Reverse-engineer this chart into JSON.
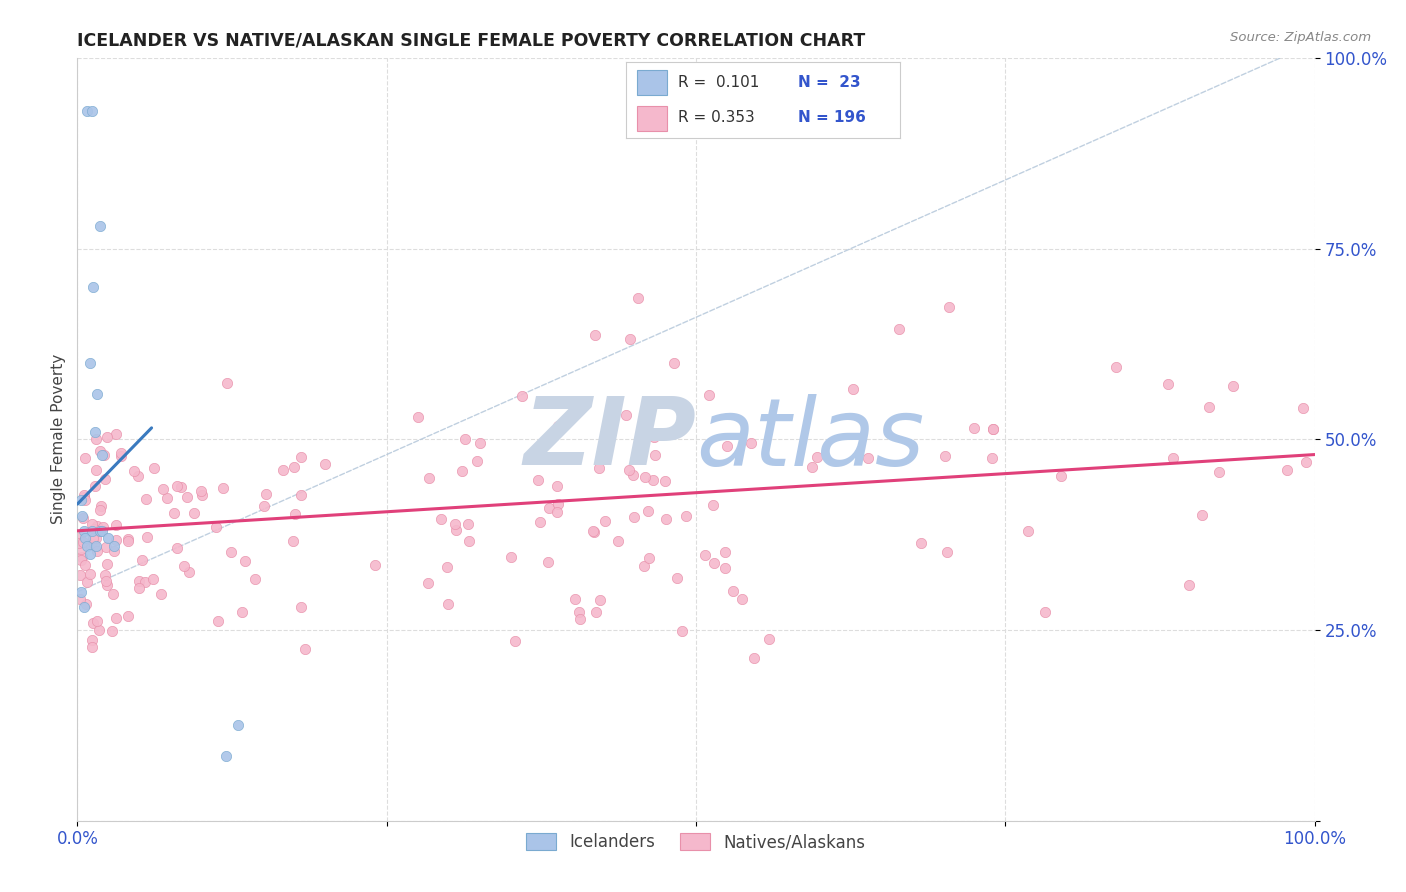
{
  "title": "ICELANDER VS NATIVE/ALASKAN SINGLE FEMALE POVERTY CORRELATION CHART",
  "source": "Source: ZipAtlas.com",
  "ylabel": "Single Female Poverty",
  "icelander_color": "#aac4e8",
  "icelander_edge_color": "#7aaad0",
  "native_color": "#f5b8cc",
  "native_edge_color": "#e890aa",
  "trendline_ice_color": "#3a7abf",
  "trendline_nat_color": "#e0407a",
  "dashed_line_color": "#b0c4d8",
  "watermark_color": "#d0dff0",
  "background_color": "#ffffff",
  "grid_color": "#dddddd",
  "tick_color": "#3355cc",
  "icelanders_label": "Icelanders",
  "natives_label": "Natives/Alaskans",
  "xlim": [
    0.0,
    1.0
  ],
  "ylim": [
    0.0,
    1.0
  ],
  "figsize": [
    14.06,
    8.92
  ],
  "dpi": 100
}
